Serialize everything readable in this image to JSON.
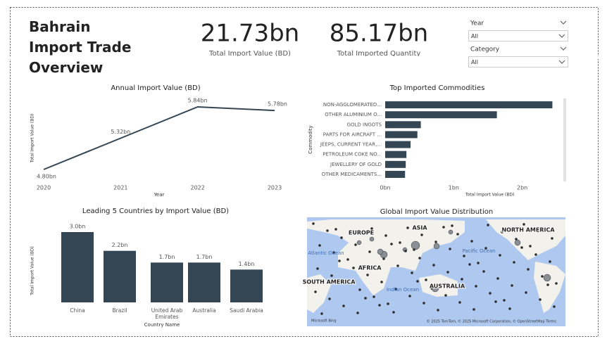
{
  "header": {
    "title": "Bahrain Import Trade Overview"
  },
  "cards": [
    {
      "value": "21.73bn",
      "label": "Total Import Value (BD)"
    },
    {
      "value": "85.17bn",
      "label": "Total Imported Quantity"
    }
  ],
  "slicers": [
    {
      "label": "Year",
      "selection": "All"
    },
    {
      "label": "Category",
      "selection": "All"
    }
  ],
  "chart_data": [
    {
      "type": "line",
      "title": "Annual Import Value (BD)",
      "color": "#344654",
      "categories": [
        "2020",
        "2021",
        "2022",
        "2023"
      ],
      "values": [
        4.8,
        5.32,
        5.84,
        5.78
      ],
      "value_labels": [
        "4.80bn",
        "5.32bn",
        "5.84bn",
        "5.78bn"
      ],
      "xlabel": "Year",
      "ylabel": "Total Import Value (BD)"
    },
    {
      "type": "hbar",
      "title": "Top Imported Commodities",
      "color": "#344654",
      "categories": [
        "NON-AGGLOMERATED...",
        "OTHER ALUMINIUM O...",
        "GOLD INGOTS",
        "PARTS FOR AIRCRAFT ...",
        "JEEPS, CURRENT YEAR,...",
        "PETROLEUM COKE NO...",
        "JEWELLERY OF GOLD",
        "OTHER MEDICAMENTS..."
      ],
      "values": [
        2.44,
        1.63,
        0.52,
        0.47,
        0.37,
        0.31,
        0.3,
        0.29
      ],
      "xlim": [
        0,
        2.6
      ],
      "xticks": [
        {
          "value": 0,
          "label": "0bn"
        },
        {
          "value": 1,
          "label": "1bn"
        },
        {
          "value": 2,
          "label": "2bn"
        }
      ],
      "xlabel": "Total Import Value (BD)",
      "ylabel": "Commodity"
    },
    {
      "type": "bar",
      "title": "Leading 5 Countries by Import Value (BD)",
      "color": "#344654",
      "categories": [
        "China",
        "Brazil",
        "United Arab Emirates",
        "Australia",
        "Saudi Arabia"
      ],
      "values": [
        3.0,
        2.2,
        1.7,
        1.7,
        1.4
      ],
      "value_labels": [
        "3.0bn",
        "2.2bn",
        "1.7bn",
        "1.7bn",
        "1.4bn"
      ],
      "xlabel": "Country Name",
      "ylabel": "Total Import Value (BD)"
    }
  ],
  "map": {
    "title": "Global Import Value Distribution",
    "labels": [
      "EUROPE",
      "ASIA",
      "NORTH AMERICA",
      "Atlantic Ocean",
      "Pacific Ocean",
      "AFRICA",
      "SOUTH AMERICA",
      "Indian Ocean",
      "AUSTRALIA"
    ],
    "brand": "Microsoft Bing",
    "attribution": "© 2025 TomTom, © 2025 Microsoft Corporation, © OpenStreetMap Terms"
  }
}
